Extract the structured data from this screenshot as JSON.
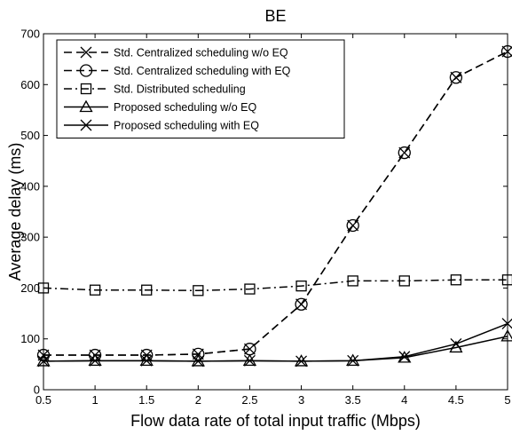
{
  "chart_data": {
    "type": "line",
    "title": "BE",
    "xlabel": "Flow data rate of total input traffic (Mbps)",
    "ylabel": "Average delay (ms)",
    "xlim": [
      0.5,
      5
    ],
    "ylim": [
      0,
      700
    ],
    "x_ticks": [
      "0.5",
      "1",
      "1.5",
      "2",
      "2.5",
      "3",
      "3.5",
      "4",
      "4.5",
      "5"
    ],
    "y_ticks": [
      "0",
      "100",
      "200",
      "300",
      "400",
      "500",
      "600",
      "700"
    ],
    "grid": false,
    "legend_position": "top-left",
    "x": [
      0.5,
      1,
      1.5,
      2,
      2.5,
      3,
      3.5,
      4,
      4.5,
      5
    ],
    "series": [
      {
        "name": "Std. Centralized scheduling w/o EQ",
        "marker": "x",
        "dash": "dashdash",
        "values": [
          68,
          68,
          68,
          70,
          80,
          168,
          323,
          466,
          614,
          665
        ]
      },
      {
        "name": "Std. Centralized scheduling with EQ",
        "marker": "o",
        "dash": "dashdash",
        "values": [
          68,
          68,
          68,
          70,
          80,
          168,
          323,
          466,
          614,
          665
        ]
      },
      {
        "name": "Std. Distributed scheduling",
        "marker": "s",
        "dash": "dashdot",
        "values": [
          200,
          196,
          196,
          195,
          198,
          204,
          214,
          214,
          216,
          216
        ]
      },
      {
        "name": "Proposed scheduling w/o EQ",
        "marker": "^",
        "dash": "solid",
        "values": [
          56,
          57,
          57,
          56,
          57,
          56,
          57,
          63,
          83,
          105
        ]
      },
      {
        "name": "Proposed scheduling with EQ",
        "marker": "x",
        "dash": "solid",
        "values": [
          56,
          57,
          57,
          56,
          57,
          56,
          57,
          65,
          90,
          130
        ]
      }
    ]
  }
}
